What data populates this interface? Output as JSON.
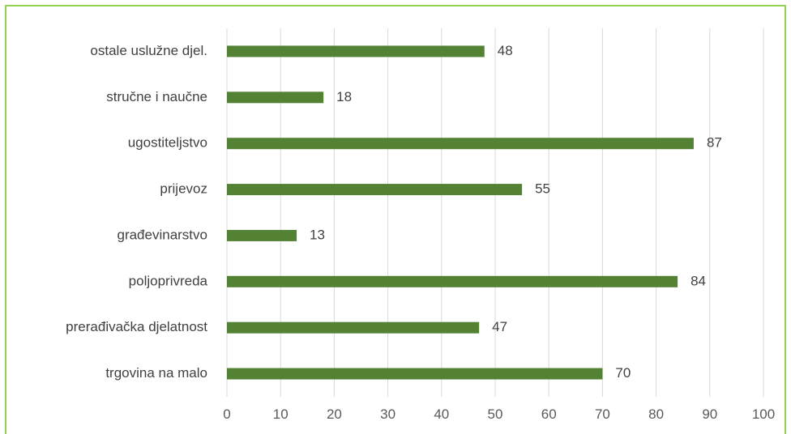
{
  "chart_data": {
    "type": "bar",
    "orientation": "horizontal",
    "categories": [
      "ostale uslužne djel.",
      "stručne i  naučne",
      "ugostiteljstvo",
      "prijevoz",
      "građevinarstvo",
      "poljoprivreda",
      "prerađivačka djelatnost",
      "trgovina na malo"
    ],
    "values": [
      48,
      18,
      87,
      55,
      13,
      84,
      47,
      70
    ],
    "data_labels": [
      "48",
      "18",
      "87",
      "55",
      "13",
      "84",
      "47",
      "70"
    ],
    "xlim": [
      0,
      100
    ],
    "x_ticks": [
      0,
      10,
      20,
      30,
      40,
      50,
      60,
      70,
      80,
      90,
      100
    ],
    "x_tick_labels": [
      "0",
      "10",
      "20",
      "30",
      "40",
      "50",
      "60",
      "70",
      "80",
      "90",
      "100"
    ],
    "title": "",
    "xlabel": "",
    "ylabel": "",
    "grid": "vertical",
    "legend": "none",
    "bar_color": "#548235",
    "border_color": "#92d050"
  }
}
